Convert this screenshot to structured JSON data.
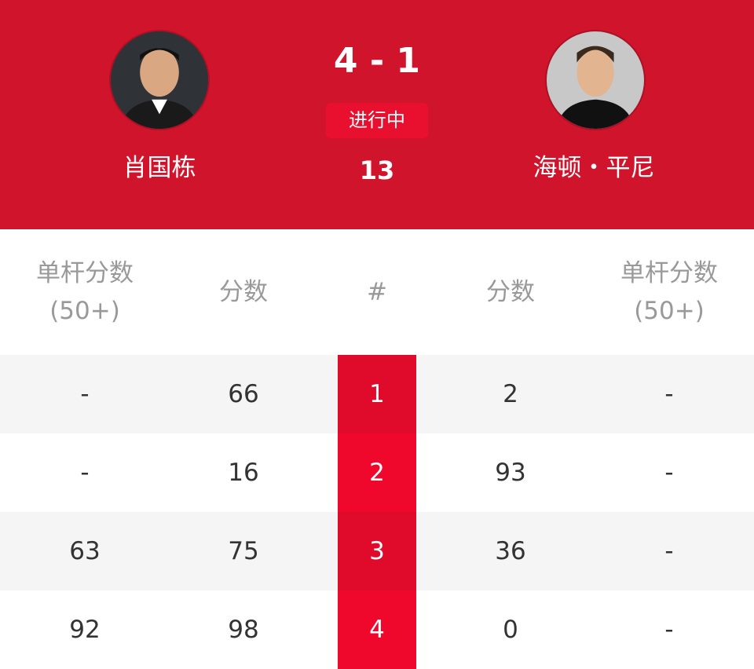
{
  "match": {
    "score": "4 - 1",
    "status": "进行中",
    "frame": "13",
    "player1": {
      "name": "肖国栋"
    },
    "player2": {
      "name": "海顿・平尼"
    }
  },
  "colors": {
    "header": "#d0142c",
    "frame_col": "#e00a2a"
  },
  "table": {
    "headers": [
      "单杆分数\n(50+)",
      "分数",
      "#",
      "分数",
      "单杆分数\n(50+)"
    ],
    "header_lines": {
      "break1": "单杆分数",
      "break2": "(50+)",
      "score": "分数",
      "num": "#"
    },
    "rows": [
      {
        "p1_break": "-",
        "p1_score": "66",
        "frame": "1",
        "p2_score": "2",
        "p2_break": "-"
      },
      {
        "p1_break": "-",
        "p1_score": "16",
        "frame": "2",
        "p2_score": "93",
        "p2_break": "-"
      },
      {
        "p1_break": "63",
        "p1_score": "75",
        "frame": "3",
        "p2_score": "36",
        "p2_break": "-"
      },
      {
        "p1_break": "92",
        "p1_score": "98",
        "frame": "4",
        "p2_score": "0",
        "p2_break": "-"
      }
    ]
  }
}
